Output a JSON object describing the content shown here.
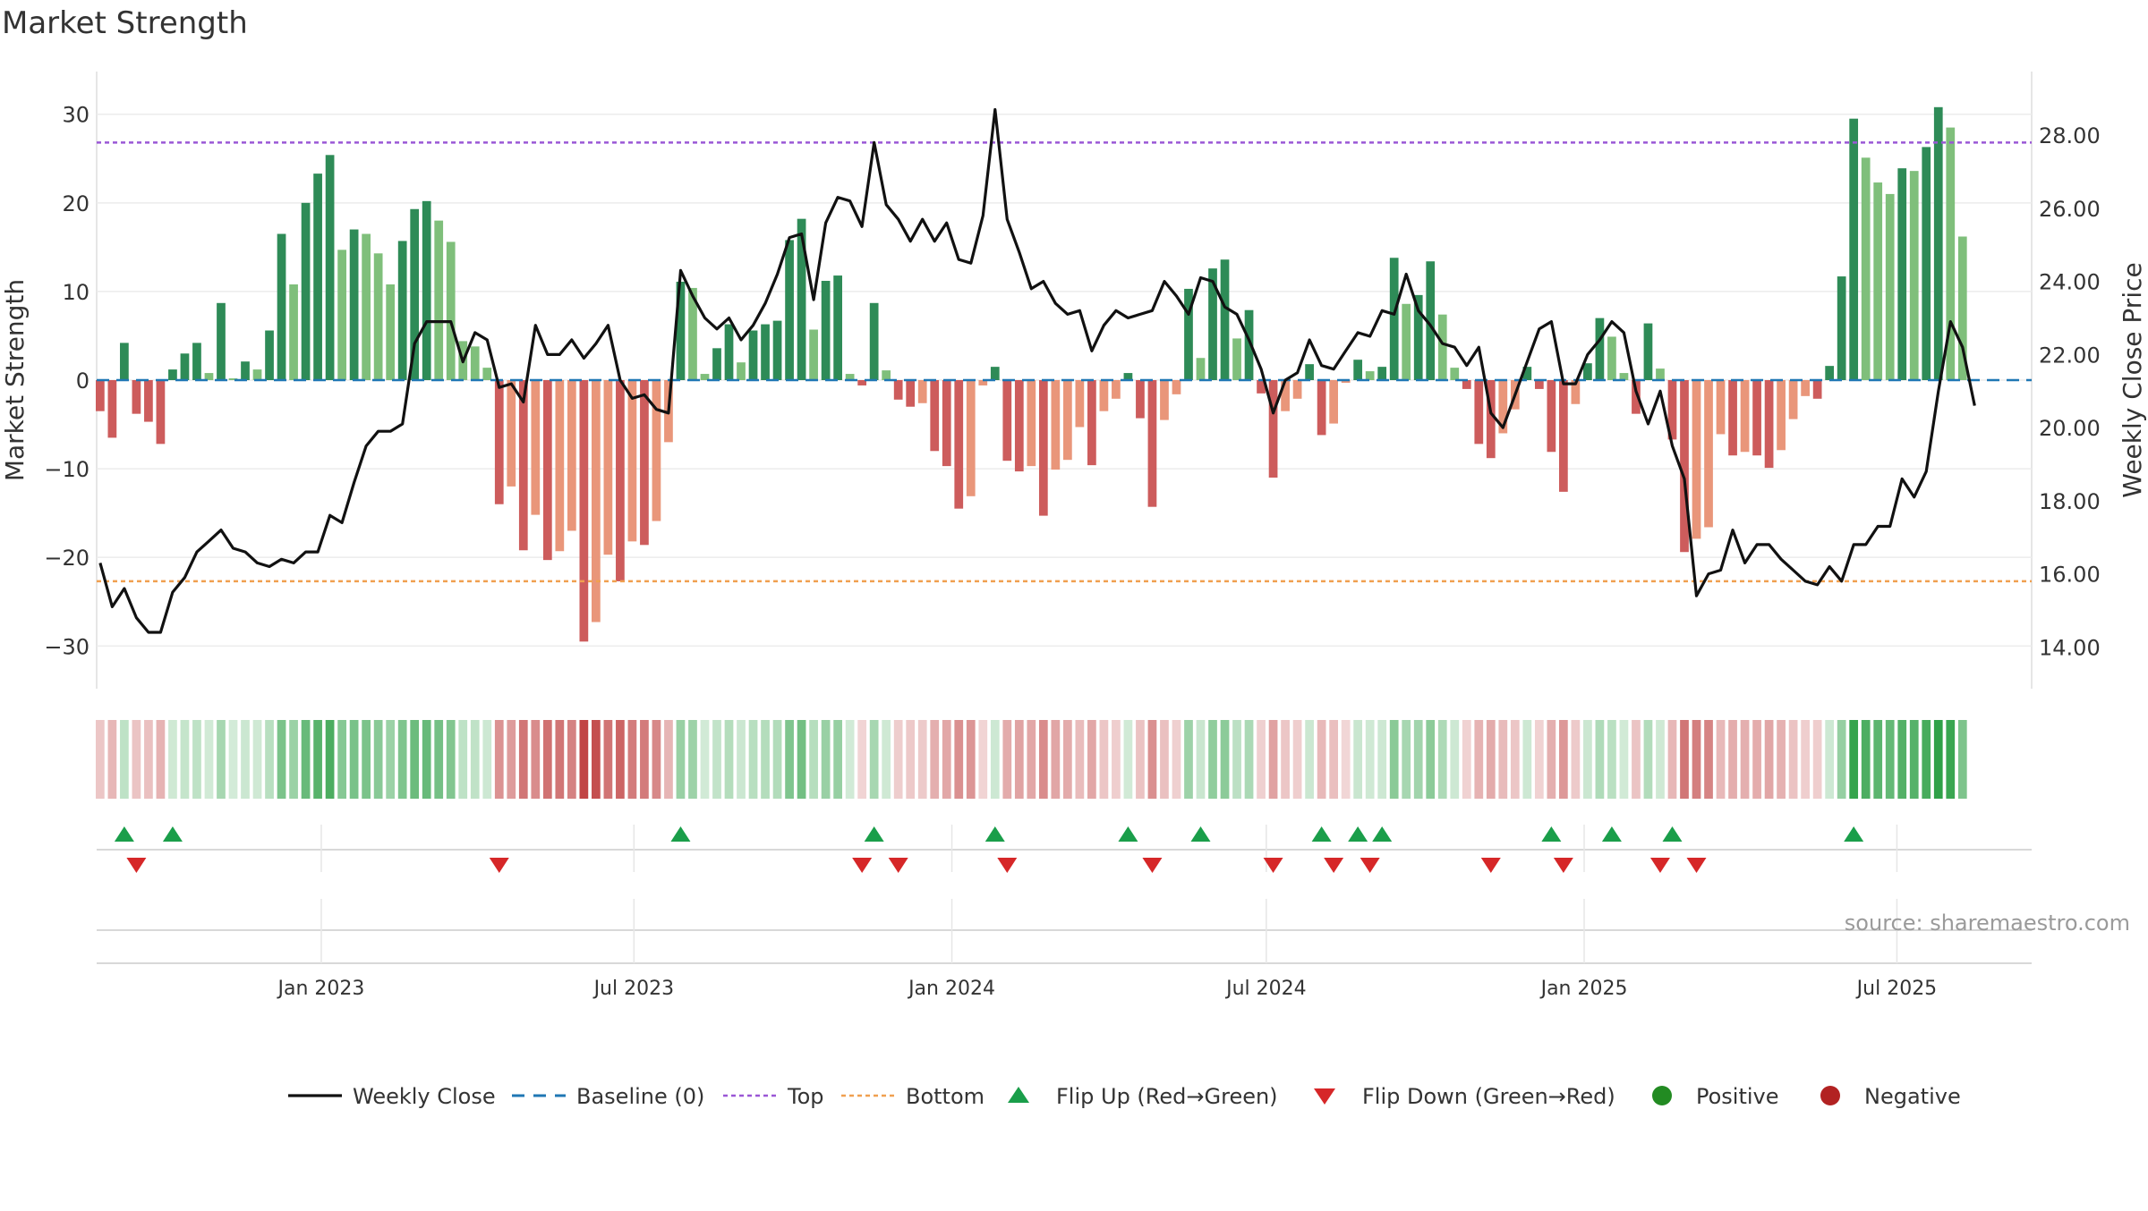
{
  "title": "Market Strength",
  "source_text": "source: sharemaestro.com",
  "colors": {
    "strong_green": "#2e8b57",
    "light_green": "#7fbf7b",
    "strong_red": "#cd5c5c",
    "light_red": "#e9967a",
    "line": "#111111",
    "baseline": "#1f77b4",
    "top": "#9a57d6",
    "bottom": "#f0a050",
    "flip_up": "#1a9e4a",
    "flip_down": "#d62728",
    "positive": "#228b22",
    "negative": "#b22222"
  },
  "chart_data": {
    "type": "bar",
    "title": "Market Strength",
    "ylabel": "Market Strength",
    "y2label": "Weekly Close Price",
    "ylim": [
      -33,
      33
    ],
    "y2lim": [
      13.3,
      29.3
    ],
    "yticks": [
      "30",
      "20",
      "10",
      "0",
      "−10",
      "−20",
      "−30"
    ],
    "y2ticks": [
      "28.00",
      "26.00",
      "24.00",
      "22.00",
      "20.00",
      "18.00",
      "16.00",
      "14.00"
    ],
    "x_date_range": [
      "2022-08-24",
      "2025-09-17"
    ],
    "xticks": [
      {
        "date": "2023-01-01",
        "label": "Jan 2023"
      },
      {
        "date": "2023-07-01",
        "label": "Jul 2023"
      },
      {
        "date": "2024-01-01",
        "label": "Jan 2024"
      },
      {
        "date": "2024-07-01",
        "label": "Jul 2024"
      },
      {
        "date": "2025-01-01",
        "label": "Jan 2025"
      },
      {
        "date": "2025-07-01",
        "label": "Jul 2025"
      }
    ],
    "first_week": "2022-08-26",
    "top_level": 26.8,
    "bottom_level": -22.7,
    "grid": true,
    "legend_position": "bottom-center",
    "series": [
      {
        "name": "Market Strength",
        "values": [
          -3.5,
          -6.5,
          4.2,
          -3.8,
          -4.7,
          -7.2,
          1.2,
          3.0,
          4.2,
          0.8,
          8.7,
          0.2,
          2.1,
          1.2,
          5.6,
          16.5,
          10.8,
          20.0,
          23.3,
          25.4,
          14.7,
          17.0,
          16.5,
          14.3,
          10.8,
          15.7,
          19.3,
          20.2,
          18.0,
          15.6,
          4.4,
          3.8,
          1.4,
          -14.0,
          -12.0,
          -19.2,
          -15.2,
          -20.3,
          -19.3,
          -17.0,
          -29.5,
          -27.3,
          -19.7,
          -22.7,
          -18.2,
          -18.6,
          -15.9,
          -7.0,
          11.1,
          10.4,
          0.7,
          3.6,
          6.3,
          2.0,
          5.6,
          6.3,
          6.7,
          15.8,
          18.2,
          5.7,
          11.2,
          11.8,
          0.7,
          -0.6,
          8.7,
          1.1,
          -2.2,
          -3.0,
          -2.6,
          -8.0,
          -9.7,
          -14.5,
          -13.1,
          -0.6,
          1.5,
          -9.1,
          -10.3,
          -9.7,
          -15.3,
          -10.1,
          -9.0,
          -5.3,
          -9.6,
          -3.5,
          -2.1,
          0.8,
          -4.3,
          -14.3,
          -4.5,
          -1.6,
          10.3,
          2.5,
          12.6,
          13.6,
          4.7,
          7.9,
          -1.5,
          -11.0,
          -3.5,
          -2.1,
          1.8,
          -6.2,
          -4.9,
          -0.3,
          2.3,
          1.0,
          1.5,
          13.8,
          8.6,
          9.6,
          13.4,
          7.4,
          1.4,
          -1.0,
          -7.2,
          -8.8,
          -6.0,
          -3.3,
          1.5,
          -1.0,
          -8.1,
          -12.6,
          -2.7,
          1.9,
          7.0,
          4.9,
          0.8,
          -3.8,
          6.4,
          1.3,
          -6.7,
          -19.4,
          -17.9,
          -16.6,
          -6.1,
          -8.5,
          -8.1,
          -8.5,
          -9.9,
          -7.9,
          -4.4,
          -1.8,
          -2.1,
          1.6,
          11.7,
          29.5,
          25.1,
          22.3,
          21.0,
          23.9,
          23.6,
          26.3,
          30.8,
          28.5,
          16.2
        ]
      },
      {
        "name": "Weekly Close",
        "values": [
          16.3,
          15.1,
          15.6,
          14.8,
          14.4,
          14.4,
          15.5,
          15.9,
          16.6,
          16.9,
          17.2,
          16.7,
          16.6,
          16.3,
          16.2,
          16.4,
          16.3,
          16.6,
          16.6,
          17.6,
          17.4,
          18.5,
          19.5,
          19.9,
          19.9,
          20.1,
          22.3,
          22.9,
          22.9,
          22.9,
          21.8,
          22.6,
          22.4,
          21.1,
          21.2,
          20.7,
          22.8,
          22.0,
          22.0,
          22.4,
          21.9,
          22.3,
          22.8,
          21.3,
          20.8,
          20.9,
          20.5,
          20.4,
          24.3,
          23.6,
          23.0,
          22.7,
          23.0,
          22.4,
          22.8,
          23.4,
          24.2,
          25.2,
          25.3,
          23.5,
          25.6,
          26.3,
          26.2,
          25.5,
          27.8,
          26.1,
          25.7,
          25.1,
          25.7,
          25.1,
          25.6,
          24.6,
          24.5,
          25.8,
          28.7,
          25.7,
          24.8,
          23.8,
          24.0,
          23.4,
          23.1,
          23.2,
          22.1,
          22.8,
          23.2,
          23.0,
          23.1,
          23.2,
          24.0,
          23.6,
          23.1,
          24.1,
          24.0,
          23.3,
          23.1,
          22.4,
          21.6,
          20.4,
          21.3,
          21.5,
          22.4,
          21.7,
          21.6,
          22.1,
          22.6,
          22.5,
          23.2,
          23.1,
          24.2,
          23.2,
          22.8,
          22.3,
          22.2,
          21.7,
          22.2,
          20.4,
          20.0,
          20.9,
          21.8,
          22.7,
          22.9,
          21.2,
          21.2,
          22.0,
          22.4,
          22.9,
          22.6,
          21.0,
          20.1,
          21.0,
          19.5,
          18.6,
          15.4,
          16.0,
          16.1,
          17.2,
          16.3,
          16.8,
          16.8,
          16.4,
          16.1,
          15.8,
          15.7,
          16.2,
          15.8,
          16.8,
          16.8,
          17.3,
          17.3,
          18.6,
          18.1,
          18.8,
          21.0,
          22.9,
          22.2,
          20.6
        ]
      }
    ],
    "flip_up_weeks": [
      2,
      6,
      48,
      64,
      74,
      85,
      91,
      101,
      104,
      106,
      120,
      125,
      130,
      145
    ],
    "flip_down_weeks": [
      3,
      33,
      63,
      66,
      75,
      87,
      97,
      102,
      105,
      115,
      121,
      129,
      132
    ],
    "markers_present": [
      "Flip Up (Red→Green)",
      "Flip Down (Green→Red)"
    ]
  },
  "legend": [
    {
      "key": "weekly-close",
      "label": "Weekly Close",
      "kind": "line"
    },
    {
      "key": "baseline",
      "label": "Baseline (0)",
      "kind": "dash"
    },
    {
      "key": "top",
      "label": "Top",
      "kind": "dot-line"
    },
    {
      "key": "bottom",
      "label": "Bottom",
      "kind": "dot-line"
    },
    {
      "key": "flip-up",
      "label": "Flip Up (Red→Green)",
      "kind": "tri-up"
    },
    {
      "key": "flip-down",
      "label": "Flip Down (Green→Red)",
      "kind": "tri-down"
    },
    {
      "key": "positive",
      "label": "Positive",
      "kind": "circle"
    },
    {
      "key": "negative",
      "label": "Negative",
      "kind": "circle"
    }
  ]
}
